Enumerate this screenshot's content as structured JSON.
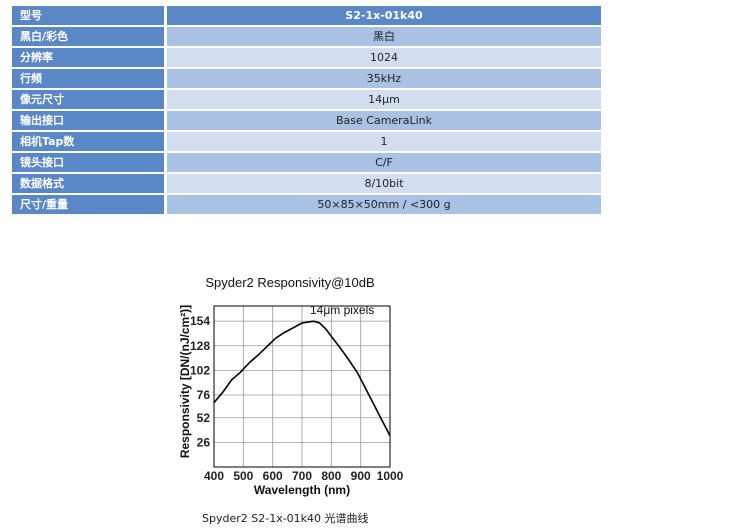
{
  "specs": {
    "rows": [
      {
        "key": "型号",
        "value": "S2-1x-01k40"
      },
      {
        "key": "黑白/彩色",
        "value": "黑白"
      },
      {
        "key": "分辨率",
        "value": "1024"
      },
      {
        "key": "行频",
        "value": "35kHz"
      },
      {
        "key": "像元尺寸",
        "value": "14μm"
      },
      {
        "key": "输出接口",
        "value": "Base CameraLink"
      },
      {
        "key": "相机Tap数",
        "value": "1"
      },
      {
        "key": "镜头接口",
        "value": "C/F"
      },
      {
        "key": "数据格式",
        "value": "8/10bit"
      },
      {
        "key": "尺寸/重量",
        "value": "50×85×50mm / <300 g"
      }
    ]
  },
  "chart_data": {
    "type": "line",
    "title": "Spyder2 Responsivity@10dB",
    "annotation": "14μm pixels",
    "xlabel": "Wavelength (nm)",
    "ylabel": "Responsivity [DN/(nJ/cm²)]",
    "xlim": [
      400,
      1000
    ],
    "ylim": [
      0,
      170
    ],
    "x_ticks": [
      400,
      500,
      600,
      700,
      800,
      900,
      1000
    ],
    "y_ticks": [
      26,
      52,
      76,
      102,
      128,
      154
    ],
    "grid": true,
    "series": [
      {
        "x": [
          400,
          430,
          460,
          490,
          520,
          550,
          580,
          610,
          640,
          670,
          700,
          720,
          740,
          760,
          780,
          800,
          830,
          860,
          890,
          920,
          950,
          980,
          1000
        ],
        "values": [
          68,
          79,
          92,
          100,
          110,
          118,
          127,
          136,
          142,
          147,
          152,
          153,
          154,
          152,
          146,
          138,
          126,
          113,
          99,
          81,
          63,
          45,
          33
        ]
      }
    ],
    "line_color": "#000000"
  },
  "caption": "Spyder2 S2-1x-01k40 光谱曲线"
}
